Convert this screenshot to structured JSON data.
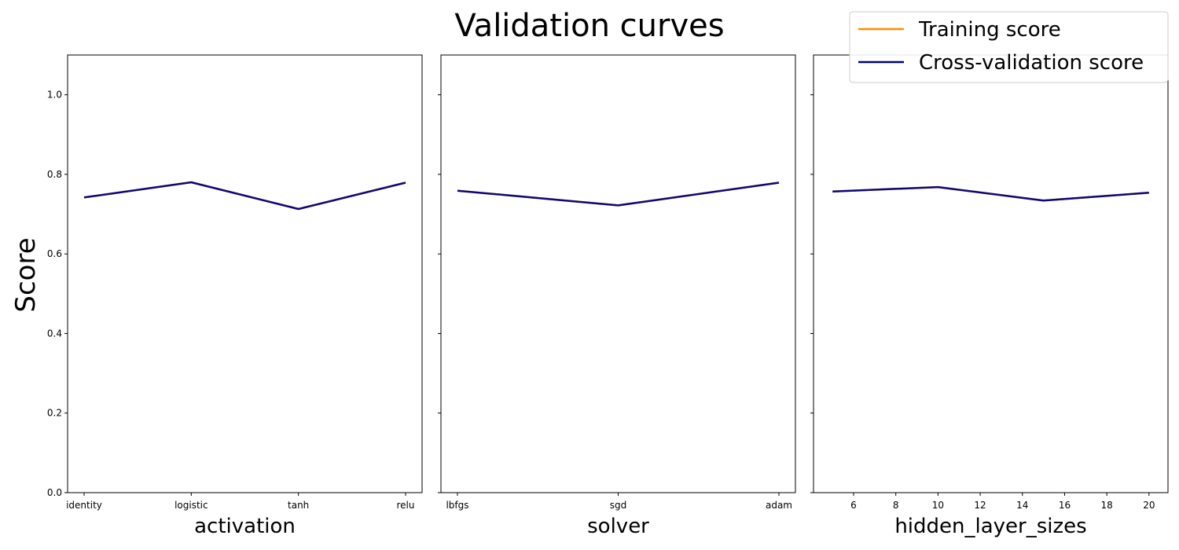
{
  "figure": {
    "title": "Validation curves",
    "ylabel": "Score"
  },
  "legend": {
    "placement": "top-right",
    "entries": [
      {
        "label": "Training score",
        "color": "#ff8c00"
      },
      {
        "label": "Cross-validation score",
        "color": "#000080"
      }
    ]
  },
  "chart_data": [
    {
      "type": "line",
      "xlabel": "activation",
      "x_kind": "categorical",
      "categories": [
        "identity",
        "logistic",
        "tanh",
        "relu"
      ],
      "ylim": [
        0,
        1.1
      ],
      "yticks": [
        0.0,
        0.2,
        0.4,
        0.6,
        0.8,
        1.0
      ],
      "series": [
        {
          "name": "Training score",
          "color": "#ff8c00",
          "values": [
            0.742,
            0.78,
            0.713,
            0.779
          ]
        },
        {
          "name": "Cross-validation score",
          "color": "#000080",
          "values": [
            0.742,
            0.78,
            0.713,
            0.779
          ]
        }
      ]
    },
    {
      "type": "line",
      "xlabel": "solver",
      "x_kind": "categorical",
      "categories": [
        "lbfgs",
        "sgd",
        "adam"
      ],
      "ylim": [
        0,
        1.1
      ],
      "yticks": [
        0.0,
        0.2,
        0.4,
        0.6,
        0.8,
        1.0
      ],
      "series": [
        {
          "name": "Training score",
          "color": "#ff8c00",
          "values": [
            0.759,
            0.722,
            0.779
          ]
        },
        {
          "name": "Cross-validation score",
          "color": "#000080",
          "values": [
            0.759,
            0.722,
            0.779
          ]
        }
      ]
    },
    {
      "type": "line",
      "xlabel": "hidden_layer_sizes",
      "x_kind": "numeric",
      "x": [
        5,
        10,
        15,
        20
      ],
      "xlim": [
        4.1,
        20.9
      ],
      "xticks": [
        6,
        8,
        10,
        12,
        14,
        16,
        18,
        20
      ],
      "ylim": [
        0,
        1.1
      ],
      "yticks": [
        0.0,
        0.2,
        0.4,
        0.6,
        0.8,
        1.0
      ],
      "series": [
        {
          "name": "Training score",
          "color": "#ff8c00",
          "values": [
            0.757,
            0.768,
            0.734,
            0.754
          ]
        },
        {
          "name": "Cross-validation score",
          "color": "#000080",
          "values": [
            0.757,
            0.768,
            0.734,
            0.754
          ]
        }
      ]
    }
  ]
}
